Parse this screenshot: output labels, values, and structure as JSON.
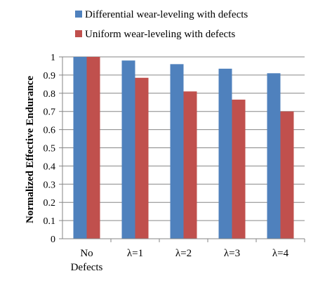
{
  "chart_data": {
    "type": "bar",
    "categories": [
      [
        "No",
        "Defects"
      ],
      [
        "λ=1"
      ],
      [
        "λ=2"
      ],
      [
        "λ=3"
      ],
      [
        "λ=4"
      ]
    ],
    "series": [
      {
        "name": "Differential wear-leveling with defects",
        "color": "#4F81BD",
        "values": [
          1.0,
          0.98,
          0.96,
          0.935,
          0.91
        ]
      },
      {
        "name": "Uniform wear-leveling with defects",
        "color": "#C0504D",
        "values": [
          1.0,
          0.885,
          0.81,
          0.765,
          0.7
        ]
      }
    ],
    "title": "",
    "xlabel": "",
    "ylabel": "Normalized  Effective Endurance",
    "ylim": [
      0,
      1
    ],
    "yticks": [
      "0",
      "0.1",
      "0.2",
      "0.3",
      "0.4",
      "0.5",
      "0.6",
      "0.7",
      "0.8",
      "0.9",
      "1"
    ],
    "grid": true,
    "legend_position": "top"
  }
}
